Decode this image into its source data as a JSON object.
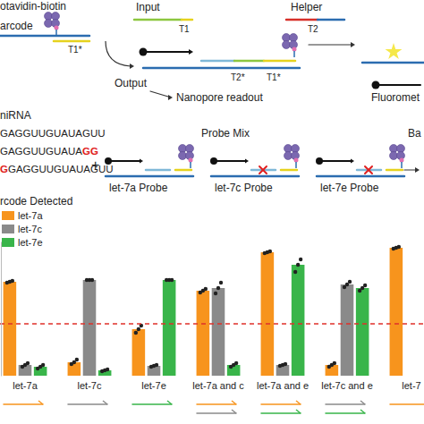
{
  "chart_data": {
    "type": "bar",
    "title": "rcode Detected",
    "categories": [
      "let-7a",
      "let-7c",
      "let-7e",
      "let-7a and c",
      "let-7a and e",
      "let-7c and e",
      "let-7"
    ],
    "series": [
      {
        "name": "let-7a",
        "color": "#f7941d",
        "values": [
          1.05,
          0.15,
          0.52,
          0.95,
          1.38,
          0.12,
          1.43
        ],
        "replicates": [
          [
            1.04,
            1.05,
            1.06
          ],
          [
            0.13,
            0.15,
            0.18
          ],
          [
            0.48,
            0.52,
            0.56
          ],
          [
            0.93,
            0.95,
            0.97
          ],
          [
            1.37,
            1.38,
            1.39
          ],
          [
            0.1,
            0.12,
            0.14
          ],
          [
            1.42,
            1.43,
            1.44
          ]
        ]
      },
      {
        "name": "let-7c",
        "color": "#8a8a8a",
        "values": [
          0.12,
          1.07,
          0.11,
          0.98,
          0.12,
          1.02,
          null
        ],
        "replicates": [
          [
            0.1,
            0.12,
            0.14
          ],
          [
            1.07,
            1.07,
            1.07
          ],
          [
            0.1,
            0.11,
            0.12
          ],
          [
            0.92,
            0.98,
            1.04
          ],
          [
            0.11,
            0.12,
            0.13
          ],
          [
            0.99,
            1.02,
            1.05
          ],
          null
        ]
      },
      {
        "name": "let-7e",
        "color": "#39b54a",
        "values": [
          0.1,
          0.06,
          1.07,
          0.12,
          1.24,
          0.98,
          null
        ],
        "replicates": [
          [
            0.08,
            0.1,
            0.12
          ],
          [
            0.05,
            0.06,
            0.07
          ],
          [
            1.07,
            1.07,
            1.07
          ],
          [
            0.1,
            0.12,
            0.14
          ],
          [
            1.16,
            1.24,
            1.3
          ],
          [
            0.95,
            0.98,
            1.01
          ],
          null
        ]
      }
    ],
    "ylim": [
      0,
      1.5
    ],
    "yticks": [],
    "tick_labels": "x",
    "legend": "upper left",
    "threshold": 0.58
  },
  "diagram": {
    "top": {
      "streptavidin": "otavidin-biotin",
      "barcode": "arcode",
      "barcode_toehold": "T1*",
      "input": "Input",
      "input_toehold": "T1",
      "helper": "Helper",
      "helper_toehold": "T2",
      "output": "Output",
      "readout": "Nanopore readout",
      "complex_toeholds": [
        "T2*",
        "T1*"
      ],
      "fluorometer": "Fluoromet"
    },
    "mirna_heading": "niRNA",
    "sequences": [
      {
        "parts": [
          {
            "text": "GAGGUUGUAUAGUU"
          }
        ]
      },
      {
        "parts": [
          {
            "text": "GAGGUUGUAUA"
          },
          {
            "text": "GG",
            "mismatch": true
          }
        ]
      },
      {
        "parts": [
          {
            "text": "G",
            "mismatch": true
          },
          {
            "text": "GAGGUUGUAUAGUU"
          }
        ]
      }
    ],
    "plus": "+",
    "probe_mix": "Probe Mix",
    "probes": [
      {
        "label": "let-7a Probe",
        "mismatch": false
      },
      {
        "label": "let-7c Probe",
        "mismatch": true
      },
      {
        "label": "let-7e Probe",
        "mismatch": true
      }
    ],
    "barcode_result": "Ba"
  }
}
